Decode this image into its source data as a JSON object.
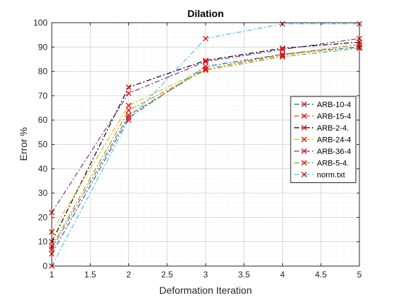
{
  "chart_data": {
    "type": "line",
    "title": "Dilation",
    "xlabel": "Deformation Iteration",
    "ylabel": "Error %",
    "xlim": [
      1,
      5
    ],
    "ylim": [
      0,
      100
    ],
    "xticks": [
      "1",
      "1.5",
      "2",
      "2.5",
      "3",
      "3.5",
      "4",
      "4.5",
      "5"
    ],
    "yticks": [
      "0",
      "10",
      "20",
      "30",
      "40",
      "50",
      "60",
      "70",
      "80",
      "90",
      "100"
    ],
    "grid": "on",
    "legend_position": "right",
    "x": [
      1,
      2,
      3,
      4,
      5
    ],
    "series": [
      {
        "name": "ARB-10-4",
        "color": "#0072BD",
        "values": [
          5,
          61,
          82,
          87,
          90
        ]
      },
      {
        "name": "ARB-15-4",
        "color": "#D95319",
        "values": [
          7,
          62,
          81,
          87,
          91
        ]
      },
      {
        "name": "ARB-2-4.",
        "color": "#000000",
        "values": [
          10,
          73.5,
          84.5,
          89.5,
          92
        ]
      },
      {
        "name": "ARB-24-4",
        "color": "#EDB120",
        "values": [
          14,
          66,
          81,
          86.5,
          91
        ]
      },
      {
        "name": "ARB-36-4",
        "color": "#7E2F8E",
        "values": [
          22,
          71,
          84,
          89,
          93.5
        ]
      },
      {
        "name": "ARB-5-4.",
        "color": "#77AC30",
        "values": [
          8,
          64,
          80.5,
          86,
          89.5
        ]
      },
      {
        "name": "norm.txt",
        "color": "#4DBEEE",
        "values": [
          0,
          60,
          93.5,
          99.5,
          99.5
        ]
      }
    ],
    "marker": "x",
    "marker_color": "#E01010"
  }
}
